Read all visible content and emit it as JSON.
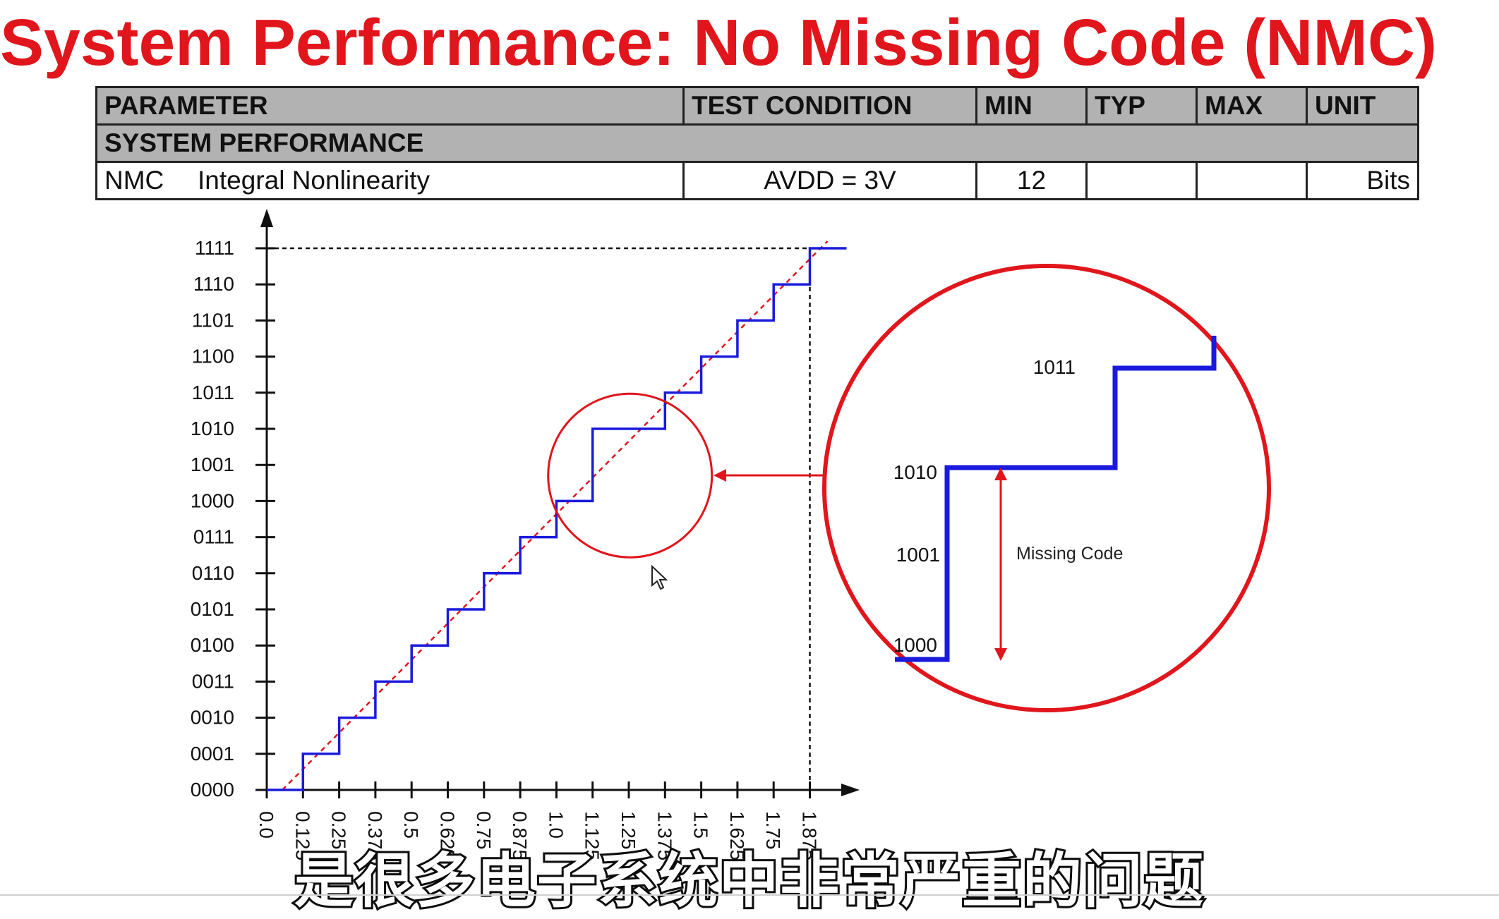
{
  "title": "System Performance: No Missing Code (NMC)",
  "table": {
    "headers": [
      "PARAMETER",
      "TEST CONDITION",
      "MIN",
      "TYP",
      "MAX",
      "UNIT"
    ],
    "section": "SYSTEM PERFORMANCE",
    "row": {
      "symbol": "NMC",
      "parameter": "Integral Nonlinearity",
      "condition": "AVDD = 3V",
      "min": "12",
      "typ": "",
      "max": "",
      "unit": "Bits"
    }
  },
  "chart_data": {
    "type": "line",
    "y_ticks": [
      "0000",
      "0001",
      "0010",
      "0011",
      "0100",
      "0101",
      "0110",
      "0111",
      "1000",
      "1001",
      "1010",
      "1011",
      "1100",
      "1101",
      "1110",
      "1111"
    ],
    "x_ticks": [
      "0.0",
      "0.125",
      "0.25",
      "0.375",
      "0.5",
      "0.625",
      "0.75",
      "0.875",
      "1.0",
      "1.125",
      "1.25",
      "1.375",
      "1.5",
      "1.625",
      "1.75",
      "1.875"
    ],
    "series": [
      {
        "style": "staircase",
        "color": "#1a1adc",
        "values": [
          0,
          1,
          2,
          3,
          4,
          5,
          6,
          7,
          8,
          10,
          10,
          11,
          12,
          13,
          14,
          15
        ]
      },
      {
        "style": "dashed-ideal",
        "color": "#e0161c"
      }
    ],
    "missing_code_step": 9
  },
  "zoom": {
    "labels": {
      "upper": "1011",
      "mid": "1010",
      "missing": "1001",
      "lower": "1000"
    },
    "annotation": "Missing Code",
    "circle_color": "#e0161c",
    "line_color": "#1a1adc"
  },
  "subtitle": "是很多电子系统中非常严重的问题"
}
